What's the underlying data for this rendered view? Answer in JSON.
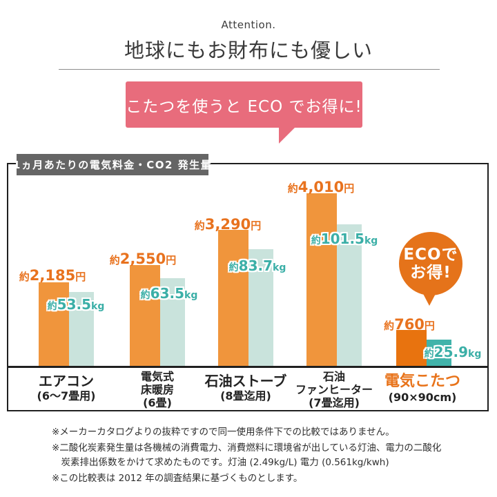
{
  "header": {
    "attention": "Attention.",
    "title": "地球にもお財布にも優しい",
    "bubble_text": "こたつを使うと ECO でお得に!"
  },
  "eco_badge": {
    "line1": "ECOで",
    "line2": "お得!"
  },
  "chart_data": {
    "type": "bar",
    "title": "1ヵ月あたりの電気料金・CO2 発生量",
    "categories": [
      [
        "エアコン",
        "(6〜7畳用)"
      ],
      [
        "電気式",
        "床暖房",
        "(6畳)"
      ],
      [
        "石油ストーブ",
        "(8畳迄用)"
      ],
      [
        "石油",
        "ファンヒーター",
        "(7畳迄用)"
      ],
      [
        "電気こたつ",
        "(90×90cm)"
      ]
    ],
    "series": [
      {
        "name": "電気料金",
        "unit": "円",
        "approx_prefix": "約",
        "values": [
          2185,
          2550,
          3290,
          4010,
          760
        ],
        "display": [
          "2,185",
          "2,550",
          "3,290",
          "4,010",
          "760"
        ]
      },
      {
        "name": "CO2発生量",
        "unit": "kg",
        "approx_prefix": "約",
        "values": [
          53.5,
          63.5,
          83.7,
          101.5,
          25.9
        ],
        "display": [
          "53.5",
          "63.5",
          "83.7",
          "101.5",
          "25.9"
        ]
      }
    ],
    "highlight_index": 4,
    "legend": "none",
    "grid": "off"
  },
  "colors": {
    "bar_yen": "#F0953C",
    "bar_yen_highlight": "#E8730F",
    "bar_co2": "#C9E3DC",
    "bar_co2_highlight": "#41B3AA",
    "label_yen": "#E8721E",
    "label_co2": "#3BAFA7",
    "category_highlight": "#E8731A",
    "bubble_pink": "#E86C7C",
    "eco_badge_orange": "#E5731A",
    "chart_title_bg": "#656565"
  },
  "notes": [
    "※メーカーカタログよりの抜粋ですので同一使用条件下での比較ではありません。",
    "※二酸化炭素発生量は各機械の消費電力、消費燃料に環境省が出している灯油、電力の二酸化\n炭素排出係数をかけて求めたものです。灯油 (2.49kg/L) 電力 (0.561kg/kwh)",
    "※この比較表は 2012 年の調査結果に基づくものとします。"
  ]
}
